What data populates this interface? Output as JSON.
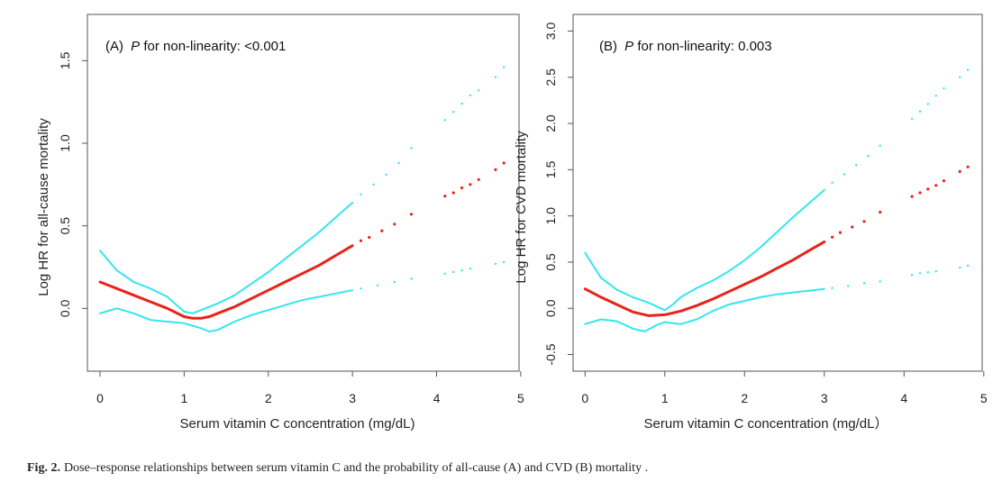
{
  "chart_data": [
    {
      "id": "A",
      "type": "line",
      "annotation_prefix": "(A)",
      "annotation_p": "P",
      "annotation_rest": " for non-linearity: <0.001",
      "xlabel": "Serum vitamin C concentration (mg/dL)",
      "ylabel": "Log HR for all-cause mortality",
      "xlim": [
        -0.15,
        4.98
      ],
      "ylim": [
        -0.38,
        1.78
      ],
      "xticks": [
        0,
        1,
        2,
        3,
        4,
        5
      ],
      "yticks": [
        0.0,
        0.5,
        1.0,
        1.5
      ],
      "ytick_labels": [
        "0.0",
        "0.5",
        "1.0",
        "1.5"
      ],
      "series": [
        {
          "name": "upper 95% CI",
          "color": "#33e6f0",
          "style": "line",
          "x": [
            0,
            0.2,
            0.4,
            0.6,
            0.8,
            1.0,
            1.1,
            1.2,
            1.4,
            1.6,
            1.8,
            2.0,
            2.2,
            2.4,
            2.6,
            2.8,
            3.0
          ],
          "y": [
            0.35,
            0.23,
            0.16,
            0.12,
            0.07,
            -0.02,
            -0.03,
            -0.01,
            0.03,
            0.08,
            0.15,
            0.22,
            0.3,
            0.38,
            0.46,
            0.55,
            0.64
          ]
        },
        {
          "name": "upper 95% CI (sparse)",
          "color": "#33e6f0",
          "style": "dots",
          "x": [
            3.1,
            3.25,
            3.4,
            3.55,
            3.7,
            4.1,
            4.2,
            4.3,
            4.4,
            4.5,
            4.7,
            4.8
          ],
          "y": [
            0.69,
            0.75,
            0.81,
            0.88,
            0.97,
            1.14,
            1.19,
            1.24,
            1.29,
            1.32,
            1.4,
            1.46
          ]
        },
        {
          "name": "Log HR",
          "color": "#e8231a",
          "style": "line",
          "x": [
            0,
            0.2,
            0.4,
            0.6,
            0.8,
            1.0,
            1.1,
            1.2,
            1.3,
            1.4,
            1.6,
            1.8,
            2.0,
            2.2,
            2.4,
            2.6,
            2.8,
            3.0
          ],
          "y": [
            0.16,
            0.12,
            0.08,
            0.04,
            0.0,
            -0.05,
            -0.06,
            -0.06,
            -0.05,
            -0.03,
            0.01,
            0.06,
            0.11,
            0.16,
            0.21,
            0.26,
            0.32,
            0.38
          ]
        },
        {
          "name": "Log HR (sparse)",
          "color": "#e8231a",
          "style": "dots",
          "x": [
            3.1,
            3.2,
            3.35,
            3.5,
            3.7,
            4.1,
            4.2,
            4.3,
            4.4,
            4.5,
            4.7,
            4.8
          ],
          "y": [
            0.41,
            0.43,
            0.47,
            0.51,
            0.57,
            0.68,
            0.7,
            0.73,
            0.75,
            0.78,
            0.84,
            0.88
          ]
        },
        {
          "name": "lower 95% CI",
          "color": "#33e6f0",
          "style": "line",
          "x": [
            0,
            0.2,
            0.4,
            0.6,
            0.8,
            1.0,
            1.2,
            1.3,
            1.4,
            1.6,
            1.8,
            2.0,
            2.2,
            2.4,
            2.6,
            2.8,
            3.0
          ],
          "y": [
            -0.03,
            0.0,
            -0.03,
            -0.07,
            -0.08,
            -0.09,
            -0.12,
            -0.14,
            -0.13,
            -0.08,
            -0.04,
            -0.01,
            0.02,
            0.05,
            0.07,
            0.09,
            0.11
          ]
        },
        {
          "name": "lower 95% CI (sparse)",
          "color": "#33e6f0",
          "style": "dots",
          "x": [
            3.1,
            3.3,
            3.5,
            3.7,
            4.1,
            4.2,
            4.3,
            4.4,
            4.7,
            4.8
          ],
          "y": [
            0.12,
            0.14,
            0.16,
            0.18,
            0.21,
            0.22,
            0.23,
            0.24,
            0.27,
            0.28
          ]
        }
      ]
    },
    {
      "id": "B",
      "type": "line",
      "annotation_prefix": "(B)",
      "annotation_p": "P",
      "annotation_rest": " for non-linearity: 0.003",
      "xlabel": "Serum vitamin C concentration (mg/dL）",
      "ylabel": "Log HR for CVD mortality",
      "xlim": [
        -0.15,
        4.98
      ],
      "ylim": [
        -0.68,
        3.18
      ],
      "xticks": [
        0,
        1,
        2,
        3,
        4,
        5
      ],
      "yticks": [
        -0.5,
        0.0,
        0.5,
        1.0,
        1.5,
        2.0,
        2.5,
        3.0
      ],
      "ytick_labels": [
        "-0.5",
        "0.0",
        "0.5",
        "1.0",
        "1.5",
        "2.0",
        "2.5",
        "3.0"
      ],
      "series": [
        {
          "name": "upper 95% CI",
          "color": "#33e6f0",
          "style": "line",
          "x": [
            0,
            0.2,
            0.4,
            0.6,
            0.8,
            0.9,
            1.0,
            1.1,
            1.2,
            1.4,
            1.6,
            1.8,
            2.0,
            2.2,
            2.4,
            2.6,
            2.8,
            3.0
          ],
          "y": [
            0.6,
            0.33,
            0.2,
            0.12,
            0.06,
            0.02,
            -0.02,
            0.04,
            0.12,
            0.22,
            0.3,
            0.4,
            0.52,
            0.66,
            0.82,
            0.98,
            1.13,
            1.28
          ]
        },
        {
          "name": "upper 95% CI (sparse)",
          "color": "#33e6f0",
          "style": "dots",
          "x": [
            3.1,
            3.25,
            3.4,
            3.55,
            3.7,
            4.1,
            4.2,
            4.3,
            4.4,
            4.5,
            4.7,
            4.8
          ],
          "y": [
            1.36,
            1.45,
            1.55,
            1.65,
            1.76,
            2.05,
            2.13,
            2.21,
            2.3,
            2.38,
            2.5,
            2.58
          ]
        },
        {
          "name": "Log HR",
          "color": "#e8231a",
          "style": "line",
          "x": [
            0,
            0.2,
            0.4,
            0.6,
            0.8,
            1.0,
            1.2,
            1.4,
            1.6,
            1.8,
            2.0,
            2.2,
            2.4,
            2.6,
            2.8,
            3.0
          ],
          "y": [
            0.21,
            0.12,
            0.04,
            -0.04,
            -0.08,
            -0.07,
            -0.03,
            0.03,
            0.1,
            0.18,
            0.26,
            0.34,
            0.43,
            0.52,
            0.62,
            0.72
          ]
        },
        {
          "name": "Log HR (sparse)",
          "color": "#e8231a",
          "style": "dots",
          "x": [
            3.1,
            3.2,
            3.35,
            3.5,
            3.7,
            4.1,
            4.2,
            4.3,
            4.4,
            4.5,
            4.7,
            4.8
          ],
          "y": [
            0.77,
            0.82,
            0.88,
            0.94,
            1.04,
            1.21,
            1.25,
            1.29,
            1.33,
            1.38,
            1.48,
            1.53
          ]
        },
        {
          "name": "lower 95% CI",
          "color": "#33e6f0",
          "style": "line",
          "x": [
            0,
            0.2,
            0.4,
            0.6,
            0.75,
            0.9,
            1.0,
            1.1,
            1.2,
            1.4,
            1.6,
            1.8,
            2.0,
            2.2,
            2.4,
            2.6,
            2.8,
            3.0
          ],
          "y": [
            -0.17,
            -0.12,
            -0.14,
            -0.22,
            -0.25,
            -0.18,
            -0.15,
            -0.16,
            -0.17,
            -0.12,
            -0.03,
            0.04,
            0.08,
            0.12,
            0.15,
            0.17,
            0.19,
            0.21
          ]
        },
        {
          "name": "lower 95% CI (sparse)",
          "color": "#33e6f0",
          "style": "dots",
          "x": [
            3.1,
            3.3,
            3.5,
            3.7,
            4.1,
            4.2,
            4.3,
            4.4,
            4.7,
            4.8
          ],
          "y": [
            0.22,
            0.24,
            0.27,
            0.29,
            0.36,
            0.38,
            0.39,
            0.4,
            0.44,
            0.46
          ]
        }
      ]
    }
  ],
  "caption": {
    "label": "Fig. 2.",
    "text": "Dose–response relationships between serum vitamin C and the probability of all-cause (A)  and  CVD (B) mortality ."
  }
}
